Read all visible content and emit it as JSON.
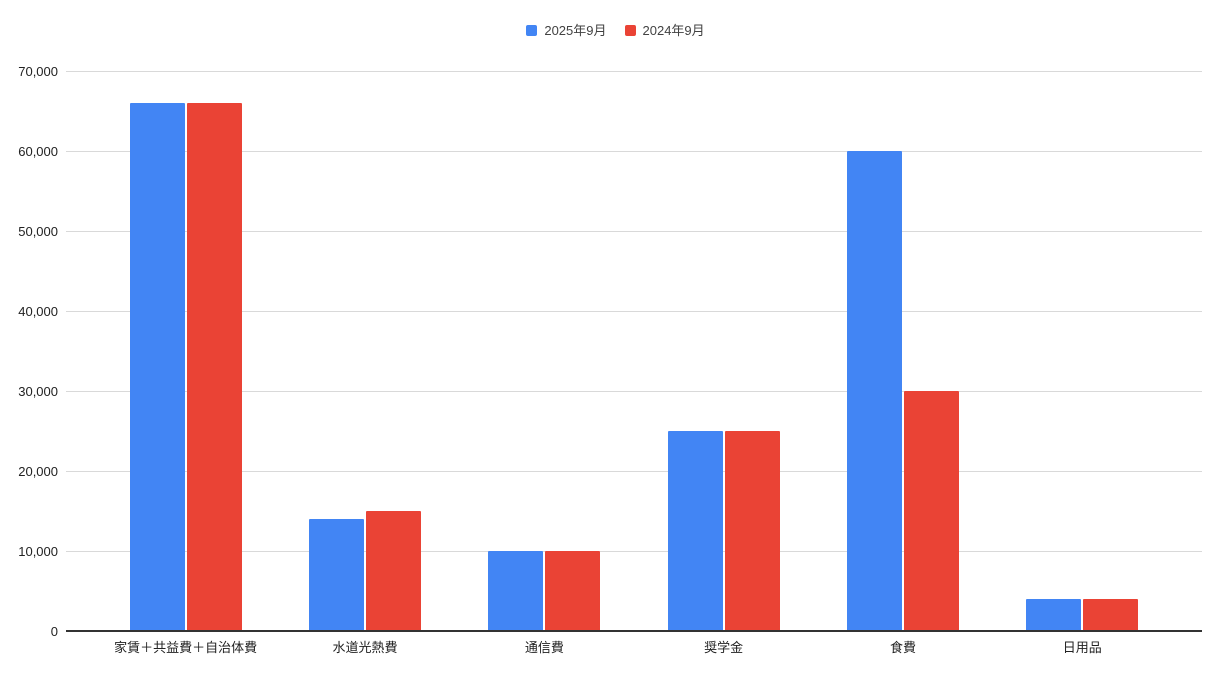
{
  "chart_data": {
    "type": "bar",
    "orientation": "vertical",
    "grouped": true,
    "title": "",
    "xlabel": "",
    "ylabel": "",
    "categories": [
      "家賃＋共益費＋自治体費",
      "水道光熱費",
      "通信費",
      "奨学金",
      "食費",
      "日用品"
    ],
    "series": [
      {
        "name": "2025年9月",
        "color": "#4285F4",
        "values": [
          66000,
          14000,
          10000,
          25000,
          60000,
          4000
        ]
      },
      {
        "name": "2024年9月",
        "color": "#EA4335",
        "values": [
          66000,
          15000,
          10000,
          25000,
          30000,
          4000
        ]
      }
    ],
    "ylim": [
      0,
      70000
    ],
    "ytick_interval": 10000,
    "ytick_labels": [
      "0",
      "10,000",
      "20,000",
      "30,000",
      "40,000",
      "50,000",
      "60,000",
      "70,000"
    ],
    "grid": true,
    "gridline_color": "#d9d9d9",
    "axis_line_color": "#333333",
    "legend_position": "top-center",
    "background_color": "#ffffff"
  }
}
